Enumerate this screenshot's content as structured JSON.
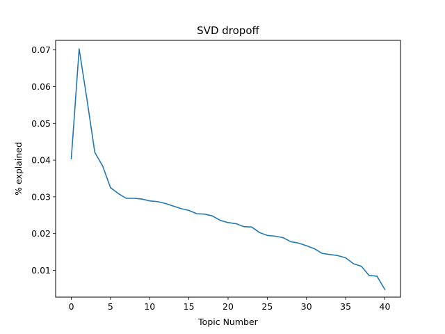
{
  "chart_data": {
    "type": "line",
    "title": "SVD dropoff",
    "xlabel": "Topic Number",
    "ylabel": "% explained",
    "xlim": [
      -2,
      42
    ],
    "ylim": [
      0.0027,
      0.0726
    ],
    "x_ticks": [
      0,
      5,
      10,
      15,
      20,
      25,
      30,
      35,
      40
    ],
    "x_tick_labels": [
      "0",
      "5",
      "10",
      "15",
      "20",
      "25",
      "30",
      "35",
      "40"
    ],
    "y_ticks": [
      0.01,
      0.02,
      0.03,
      0.04,
      0.05,
      0.06,
      0.07
    ],
    "y_tick_labels": [
      "0.01",
      "0.02",
      "0.03",
      "0.04",
      "0.05",
      "0.06",
      "0.07"
    ],
    "grid": false,
    "legend": null,
    "series": [
      {
        "color": "#1f77b4",
        "x": [
          0,
          1,
          2,
          3,
          4,
          5,
          6,
          7,
          8,
          9,
          10,
          11,
          12,
          13,
          14,
          15,
          16,
          17,
          18,
          19,
          20,
          21,
          22,
          23,
          24,
          25,
          26,
          27,
          28,
          29,
          30,
          31,
          32,
          33,
          34,
          35,
          36,
          37,
          38,
          39,
          40
        ],
        "y": [
          0.0404,
          0.0703,
          0.0565,
          0.0421,
          0.0384,
          0.0325,
          0.0309,
          0.0296,
          0.0296,
          0.0294,
          0.0289,
          0.0287,
          0.0282,
          0.0275,
          0.0268,
          0.0263,
          0.0254,
          0.0253,
          0.0248,
          0.0236,
          0.023,
          0.0227,
          0.0219,
          0.0218,
          0.0203,
          0.0195,
          0.0193,
          0.0189,
          0.0178,
          0.0174,
          0.0167,
          0.0159,
          0.0146,
          0.0143,
          0.014,
          0.0134,
          0.0118,
          0.0111,
          0.0086,
          0.0084,
          0.0048
        ]
      }
    ]
  }
}
